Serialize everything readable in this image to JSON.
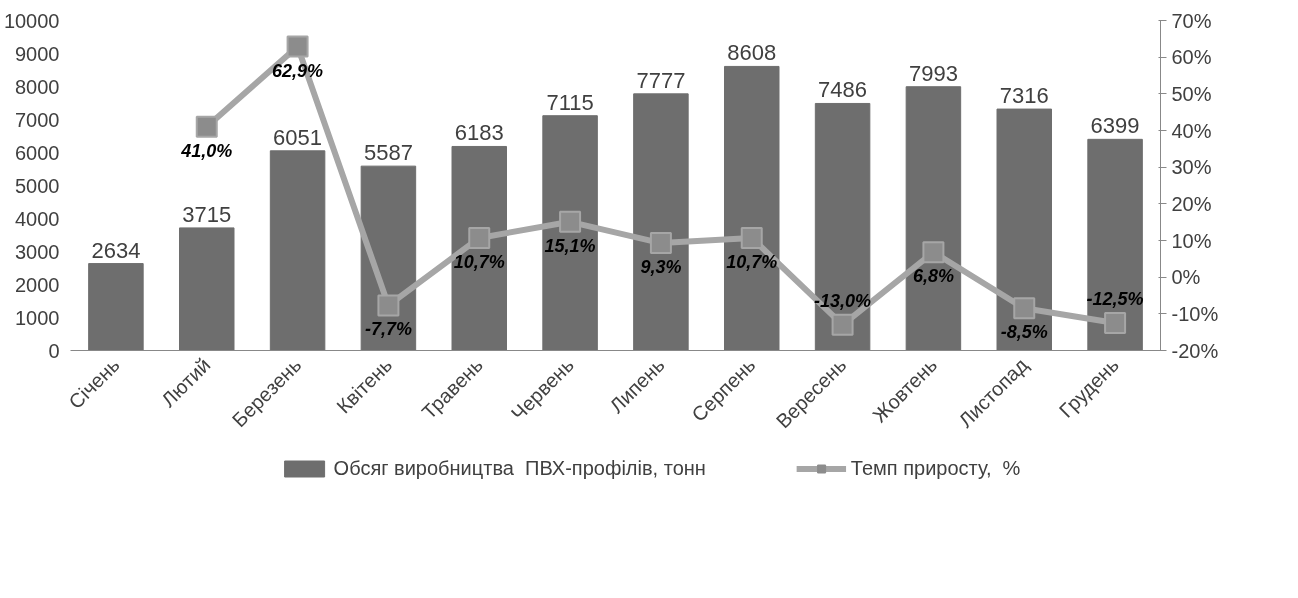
{
  "chart_data": {
    "type": "bar",
    "categories": [
      "Січень",
      "Лютий",
      "Березень",
      "Квітень",
      "Травень",
      "Червень",
      "Липень",
      "Серпень",
      "Вересень",
      "Жовтень",
      "Листопад",
      "Грудень"
    ],
    "series": [
      {
        "name": "Обсяг виробництва  ПВХ-профілів, тонн",
        "color": "#6e6e6e",
        "values": [
          2634,
          3715,
          6051,
          5587,
          6183,
          7115,
          7777,
          8608,
          7486,
          7993,
          7316,
          6399
        ]
      },
      {
        "name": "Темп приросту,  %",
        "type": "line",
        "axis": "y2",
        "color": "#a6a6a6",
        "marker": "square",
        "values": [
          null,
          41.0,
          62.9,
          -7.7,
          10.7,
          15.1,
          9.3,
          10.7,
          -13.0,
          6.8,
          -8.5,
          -12.5
        ],
        "value_labels": [
          null,
          "41,0%",
          "62,9%",
          "-7,7%",
          "10,7%",
          "15,1%",
          "9,3%",
          "10,7%",
          "-13,0%",
          "6,8%",
          "-8,5%",
          "-12,5%"
        ]
      }
    ],
    "ylim": [
      0,
      10000
    ],
    "yticks": [
      0,
      1000,
      2000,
      3000,
      4000,
      5000,
      6000,
      7000,
      8000,
      9000,
      10000
    ],
    "y2lim": [
      -20,
      70
    ],
    "y2ticks": [
      {
        "value": -20,
        "label": "-20%"
      },
      {
        "value": -10,
        "label": "-10%"
      },
      {
        "value": 0,
        "label": "0%"
      },
      {
        "value": 10,
        "label": "10%"
      },
      {
        "value": 20,
        "label": "20%"
      },
      {
        "value": 30,
        "label": "30%"
      },
      {
        "value": 40,
        "label": "40%"
      },
      {
        "value": 50,
        "label": "50%"
      },
      {
        "value": 60,
        "label": "60%"
      },
      {
        "value": 70,
        "label": "70%"
      }
    ],
    "data_labels": true,
    "grid": false,
    "legend": "bottom"
  }
}
